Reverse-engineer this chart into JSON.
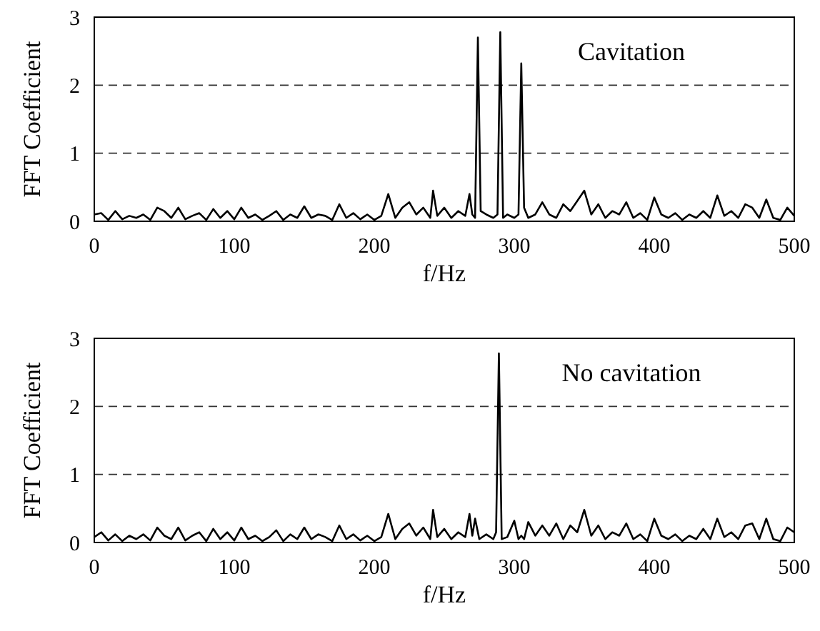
{
  "chart_data": [
    {
      "type": "line",
      "xlabel": "f/Hz",
      "ylabel": "FFT Coefficient",
      "annotations": [
        "Cavitation"
      ],
      "xlim": [
        0,
        500
      ],
      "xticks": [
        0,
        100,
        200,
        300,
        400,
        500
      ],
      "ylim": [
        0,
        3
      ],
      "yticks": [
        0,
        1,
        2,
        3
      ],
      "grid": "y",
      "line_style": "solid",
      "marker": "none",
      "x": [
        0,
        5,
        10,
        15,
        20,
        25,
        30,
        35,
        40,
        45,
        50,
        55,
        60,
        65,
        70,
        75,
        80,
        85,
        90,
        95,
        100,
        105,
        110,
        115,
        120,
        125,
        130,
        135,
        140,
        145,
        150,
        155,
        160,
        165,
        170,
        175,
        180,
        185,
        190,
        195,
        200,
        205,
        210,
        215,
        220,
        225,
        230,
        235,
        240,
        242,
        245,
        250,
        255,
        260,
        265,
        268,
        270,
        272,
        274,
        276,
        280,
        285,
        288,
        290,
        292,
        295,
        300,
        303,
        305,
        307,
        310,
        315,
        320,
        325,
        330,
        335,
        340,
        345,
        350,
        355,
        360,
        365,
        370,
        375,
        380,
        385,
        390,
        395,
        400,
        405,
        410,
        415,
        420,
        425,
        430,
        435,
        440,
        445,
        450,
        455,
        460,
        465,
        470,
        475,
        480,
        485,
        490,
        495,
        500
      ],
      "series": [
        {
          "color": "#000000",
          "values": [
            0.1,
            0.12,
            0.02,
            0.15,
            0.03,
            0.08,
            0.05,
            0.1,
            0.02,
            0.2,
            0.15,
            0.05,
            0.2,
            0.03,
            0.08,
            0.12,
            0.02,
            0.18,
            0.05,
            0.15,
            0.03,
            0.2,
            0.05,
            0.1,
            0.02,
            0.08,
            0.15,
            0.02,
            0.1,
            0.05,
            0.22,
            0.05,
            0.1,
            0.08,
            0.02,
            0.25,
            0.05,
            0.12,
            0.03,
            0.1,
            0.02,
            0.08,
            0.4,
            0.05,
            0.2,
            0.28,
            0.1,
            0.2,
            0.05,
            0.45,
            0.08,
            0.2,
            0.05,
            0.15,
            0.08,
            0.4,
            0.1,
            0.05,
            2.7,
            0.15,
            0.1,
            0.05,
            0.1,
            2.78,
            0.05,
            0.1,
            0.05,
            0.1,
            2.32,
            0.2,
            0.05,
            0.1,
            0.28,
            0.1,
            0.05,
            0.25,
            0.15,
            0.3,
            0.45,
            0.1,
            0.25,
            0.05,
            0.15,
            0.1,
            0.28,
            0.05,
            0.12,
            0.02,
            0.35,
            0.1,
            0.05,
            0.12,
            0.02,
            0.1,
            0.05,
            0.15,
            0.05,
            0.38,
            0.08,
            0.15,
            0.05,
            0.25,
            0.2,
            0.05,
            0.32,
            0.05,
            0.02,
            0.2,
            0.08
          ]
        }
      ]
    },
    {
      "type": "line",
      "xlabel": "f/Hz",
      "ylabel": "FFT Coefficient",
      "annotations": [
        "No cavitation"
      ],
      "xlim": [
        0,
        500
      ],
      "xticks": [
        0,
        100,
        200,
        300,
        400,
        500
      ],
      "ylim": [
        0,
        3
      ],
      "yticks": [
        0,
        1,
        2,
        3
      ],
      "grid": "y",
      "line_style": "solid",
      "marker": "none",
      "x": [
        0,
        5,
        10,
        15,
        20,
        25,
        30,
        35,
        40,
        45,
        50,
        55,
        60,
        65,
        70,
        75,
        80,
        85,
        90,
        95,
        100,
        105,
        110,
        115,
        120,
        125,
        130,
        135,
        140,
        145,
        150,
        155,
        160,
        165,
        170,
        175,
        180,
        185,
        190,
        195,
        200,
        205,
        210,
        215,
        220,
        225,
        230,
        235,
        240,
        242,
        245,
        250,
        255,
        260,
        265,
        268,
        270,
        272,
        275,
        280,
        285,
        287,
        289,
        291,
        295,
        300,
        303,
        305,
        307,
        310,
        315,
        320,
        325,
        330,
        335,
        340,
        345,
        350,
        355,
        360,
        365,
        370,
        375,
        380,
        385,
        390,
        395,
        400,
        405,
        410,
        415,
        420,
        425,
        430,
        435,
        440,
        445,
        450,
        455,
        460,
        465,
        470,
        475,
        480,
        485,
        490,
        495,
        500
      ],
      "series": [
        {
          "color": "#000000",
          "values": [
            0.08,
            0.15,
            0.03,
            0.12,
            0.02,
            0.1,
            0.05,
            0.12,
            0.03,
            0.22,
            0.1,
            0.05,
            0.22,
            0.03,
            0.1,
            0.15,
            0.02,
            0.2,
            0.05,
            0.15,
            0.03,
            0.22,
            0.05,
            0.1,
            0.02,
            0.08,
            0.18,
            0.02,
            0.12,
            0.05,
            0.22,
            0.05,
            0.12,
            0.08,
            0.02,
            0.25,
            0.05,
            0.12,
            0.03,
            0.1,
            0.02,
            0.08,
            0.42,
            0.05,
            0.2,
            0.28,
            0.1,
            0.22,
            0.05,
            0.48,
            0.08,
            0.2,
            0.05,
            0.15,
            0.08,
            0.42,
            0.1,
            0.35,
            0.05,
            0.12,
            0.05,
            0.15,
            2.78,
            0.05,
            0.08,
            0.32,
            0.05,
            0.1,
            0.05,
            0.3,
            0.1,
            0.25,
            0.1,
            0.28,
            0.05,
            0.25,
            0.15,
            0.48,
            0.1,
            0.25,
            0.05,
            0.15,
            0.1,
            0.28,
            0.05,
            0.12,
            0.02,
            0.35,
            0.1,
            0.05,
            0.12,
            0.02,
            0.1,
            0.05,
            0.2,
            0.05,
            0.35,
            0.08,
            0.15,
            0.05,
            0.25,
            0.28,
            0.05,
            0.35,
            0.05,
            0.02,
            0.22,
            0.15
          ]
        }
      ]
    }
  ]
}
